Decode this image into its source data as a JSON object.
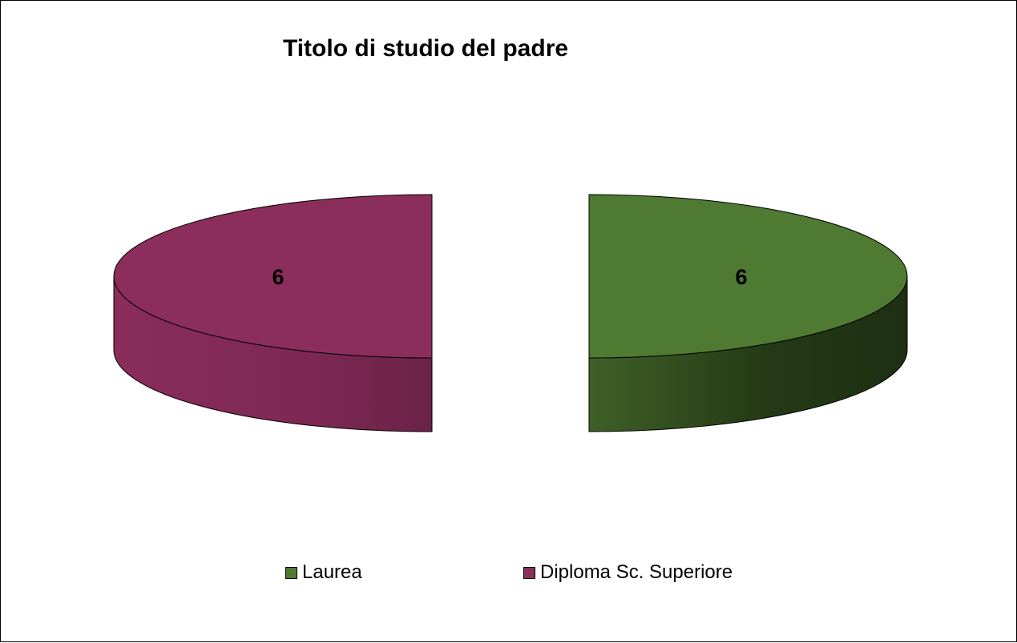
{
  "chart_data": {
    "type": "pie",
    "title": "Titolo di studio del padre",
    "slices": [
      {
        "label": "Laurea",
        "value": 6,
        "color": "#4f7a31"
      },
      {
        "label": "Diploma Sc. Superiore",
        "value": 6,
        "color": "#8b2e5c"
      }
    ],
    "legend": "bottom",
    "data_labels": true
  }
}
